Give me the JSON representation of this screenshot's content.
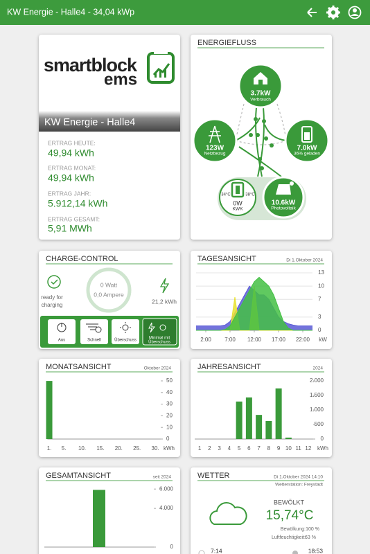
{
  "header": {
    "title": "KW Energie - Halle4 - 34,04 kWp"
  },
  "logo": {
    "line1": "smartblock",
    "line2": "ems"
  },
  "plant": {
    "name": "KW Energie - Halle4",
    "stats": [
      {
        "label": "ERTRAG HEUTE:",
        "value": "49,94 kWh"
      },
      {
        "label": "ERTRAG MONAT:",
        "value": "49,94 kWh"
      },
      {
        "label": "ERTRAG JAHR:",
        "value": "5.912,14 kWh"
      },
      {
        "label": "ERTRAG GESAMT:",
        "value": "5,91 MWh"
      }
    ]
  },
  "energiefluss": {
    "title": "ENERGIEFLUSS",
    "nodes": [
      {
        "value": "3.7kW",
        "label": "Verbrauch"
      },
      {
        "value": "123W",
        "label": "Netzbezug"
      },
      {
        "value": "7.0kW",
        "label": "36% geladen"
      },
      {
        "value": "0W",
        "label": "KWK",
        "temp1": "34°C",
        "temp2": "38°C"
      },
      {
        "value": "10.6kW",
        "label": "Photovoltaik"
      }
    ]
  },
  "charge": {
    "title": "CHARGE-CONTROL",
    "status": [
      "ready for",
      "charging"
    ],
    "watt": "0 Watt",
    "ampere": "0,0 Ampere",
    "energy": "21,2 kWh",
    "buttons": [
      [
        "Aus"
      ],
      [
        "Schnell"
      ],
      [
        "Überschuss"
      ],
      [
        "Minimal mit",
        "Überschuss"
      ]
    ]
  },
  "chart_data": [
    {
      "type": "area",
      "title": "TAGESANSICHT",
      "subtitle": "Di 1.Oktober 2024",
      "unit": "kW",
      "x": [
        0,
        1,
        2,
        3,
        4,
        5,
        6,
        7,
        8,
        9,
        10,
        11,
        12,
        13,
        14,
        15,
        16,
        17,
        18,
        19,
        20,
        21,
        22,
        23,
        24
      ],
      "xlim": [
        0,
        24
      ],
      "xticks": [
        {
          "value": 2,
          "label": "2:00"
        },
        {
          "value": 7,
          "label": "7:00"
        },
        {
          "value": 12,
          "label": "12:00"
        },
        {
          "value": 17,
          "label": "17:00"
        },
        {
          "value": 22,
          "label": "22:00"
        }
      ],
      "ylim": [
        0,
        13
      ],
      "yticks": [
        0,
        3,
        7,
        10,
        13
      ],
      "grid": true,
      "series": [
        {
          "color": "#5b5bd6",
          "values": [
            1,
            1,
            1,
            1,
            1,
            1,
            1.2,
            2,
            4,
            6,
            8,
            10,
            9,
            8,
            8,
            7,
            5,
            3,
            2,
            1.5,
            1.2,
            1,
            1,
            1,
            1
          ]
        },
        {
          "color": "#e8e030",
          "values": [
            0,
            0,
            0,
            0,
            0,
            0,
            0,
            0,
            7.5,
            0,
            0,
            0,
            10,
            0,
            0,
            0,
            0,
            0,
            0,
            0,
            0,
            0,
            0,
            0,
            0
          ]
        },
        {
          "color": "#44c044",
          "values": [
            0,
            0,
            0,
            0,
            0,
            0,
            0.2,
            1,
            3,
            5,
            7,
            9,
            11,
            12,
            11,
            10,
            8,
            5,
            2,
            0.5,
            0,
            0,
            0,
            0,
            0
          ]
        }
      ]
    },
    {
      "type": "bar",
      "title": "MONATSANSICHT",
      "subtitle": "Oktober 2024",
      "unit": "kWh",
      "color": "#3a9a3a",
      "categories": [
        "1.",
        null,
        null,
        null,
        "5.",
        null,
        null,
        null,
        null,
        "10.",
        null,
        null,
        null,
        null,
        "15.",
        null,
        null,
        null,
        null,
        "20.",
        null,
        null,
        null,
        null,
        "25.",
        null,
        null,
        null,
        null,
        "30.",
        null
      ],
      "values": [
        49.94,
        null,
        null,
        null,
        null,
        null,
        null,
        null,
        null,
        null,
        null,
        null,
        null,
        null,
        null,
        null,
        null,
        null,
        null,
        null,
        null,
        null,
        null,
        null,
        null,
        null,
        null,
        null,
        null,
        null,
        null
      ],
      "ylim": [
        0,
        50
      ],
      "yticks": [
        0,
        10,
        20,
        30,
        40,
        50
      ]
    },
    {
      "type": "bar",
      "title": "JAHRESANSICHT",
      "subtitle": "2024",
      "unit": "kWh",
      "color": "#3a9a3a",
      "categories": [
        "1",
        "2",
        "3",
        "4",
        "5",
        "6",
        "7",
        "8",
        "9",
        "10",
        "11",
        "12"
      ],
      "values": [
        null,
        null,
        null,
        null,
        1290,
        1430,
        830,
        620,
        1740,
        49.94,
        null,
        null
      ],
      "ylim": [
        0,
        2000
      ],
      "yticks": [
        0,
        500,
        {
          "value": 1000,
          "label": "1.000"
        },
        {
          "value": 1500,
          "label": "1.500"
        },
        {
          "value": 2000,
          "label": "2.000"
        }
      ]
    },
    {
      "type": "bar",
      "title": "GESAMTANSICHT",
      "subtitle": "seit 2024",
      "color": "#3a9a3a",
      "categories": [
        null
      ],
      "values": [
        5912.14
      ],
      "ylim": [
        0,
        6300
      ],
      "yticks": [
        0,
        {
          "value": 4000,
          "label": "4.000"
        },
        {
          "value": 6000,
          "label": "6.000"
        }
      ]
    }
  ],
  "wetter": {
    "title": "WETTER",
    "date": "Di 1.Oktober 2024 14:10",
    "station": "Wetterstation: Freystadt",
    "condition": "BEWÖLKT",
    "temperature": "15,74°C",
    "details": [
      {
        "label": "Bewölkung:",
        "value": "100 %"
      },
      {
        "label": "Luftfeuchtigkeit:",
        "value": "63 %"
      }
    ],
    "sunrise": "7:14",
    "sunset": "18:53"
  }
}
